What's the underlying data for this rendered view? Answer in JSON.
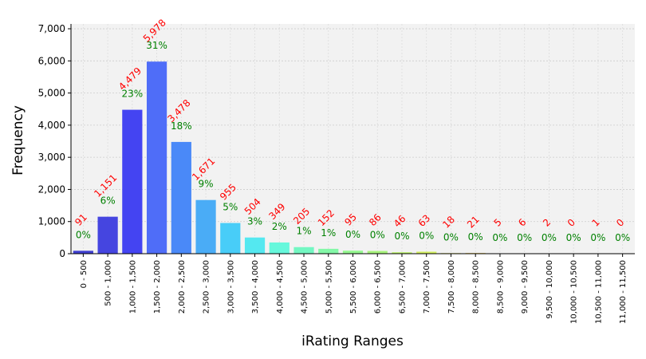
{
  "chart_data": {
    "type": "bar",
    "xlabel": "iRating Ranges",
    "ylabel": "Frequency",
    "ylim": [
      0,
      7150
    ],
    "yticks": [
      0,
      1000,
      2000,
      3000,
      4000,
      5000,
      6000,
      7000
    ],
    "ytick_labels": [
      "0",
      "1,000",
      "2,000",
      "3,000",
      "4,000",
      "5,000",
      "6,000",
      "7,000"
    ],
    "grid": true,
    "categories": [
      "0 - 500",
      "500 - 1,000",
      "1,000 - 1,500",
      "1,500 - 2,000",
      "2,000 - 2,500",
      "2,500 - 3,000",
      "3,000 - 3,500",
      "3,500 - 4,000",
      "4,000 - 4,500",
      "4,500 - 5,000",
      "5,000 - 5,500",
      "5,500 - 6,000",
      "6,000 - 6,500",
      "6,500 - 7,000",
      "7,000 - 7,500",
      "7,500 - 8,000",
      "8,000 - 8,500",
      "8,500 - 9,000",
      "9,000 - 9,500",
      "9,500 - 10,000",
      "10,000 - 10,500",
      "10,500 - 11,000",
      "11,000 - 11,500"
    ],
    "values": [
      91,
      1151,
      4479,
      5978,
      3478,
      1671,
      955,
      504,
      349,
      205,
      152,
      95,
      86,
      46,
      63,
      18,
      21,
      5,
      6,
      2,
      0,
      1,
      0
    ],
    "count_labels": [
      "91",
      "1,151",
      "4,479",
      "5,978",
      "3,478",
      "1,671",
      "955",
      "504",
      "349",
      "205",
      "152",
      "95",
      "86",
      "46",
      "63",
      "18",
      "21",
      "5",
      "6",
      "2",
      "0",
      "1",
      "0"
    ],
    "percent_labels": [
      "0%",
      "6%",
      "23%",
      "31%",
      "18%",
      "9%",
      "5%",
      "3%",
      "2%",
      "1%",
      "1%",
      "0%",
      "0%",
      "0%",
      "0%",
      "0%",
      "0%",
      "0%",
      "0%",
      "0%",
      "0%",
      "0%",
      "0%"
    ],
    "colors": [
      "#3f3fd0",
      "#4545e0",
      "#4444f2",
      "#4f6df8",
      "#4a89f8",
      "#4aacf6",
      "#48cdf8",
      "#54e8f0",
      "#66f8dc",
      "#73f7c2",
      "#84f8a8",
      "#95f890",
      "#a8f47c",
      "#bdf26c",
      "#d4f060",
      "#e6e458",
      "#e8c850",
      "#e8aa48",
      "#e88c40",
      "#e86c38",
      "#e84c30",
      "#e03228",
      "#cc2020"
    ]
  }
}
